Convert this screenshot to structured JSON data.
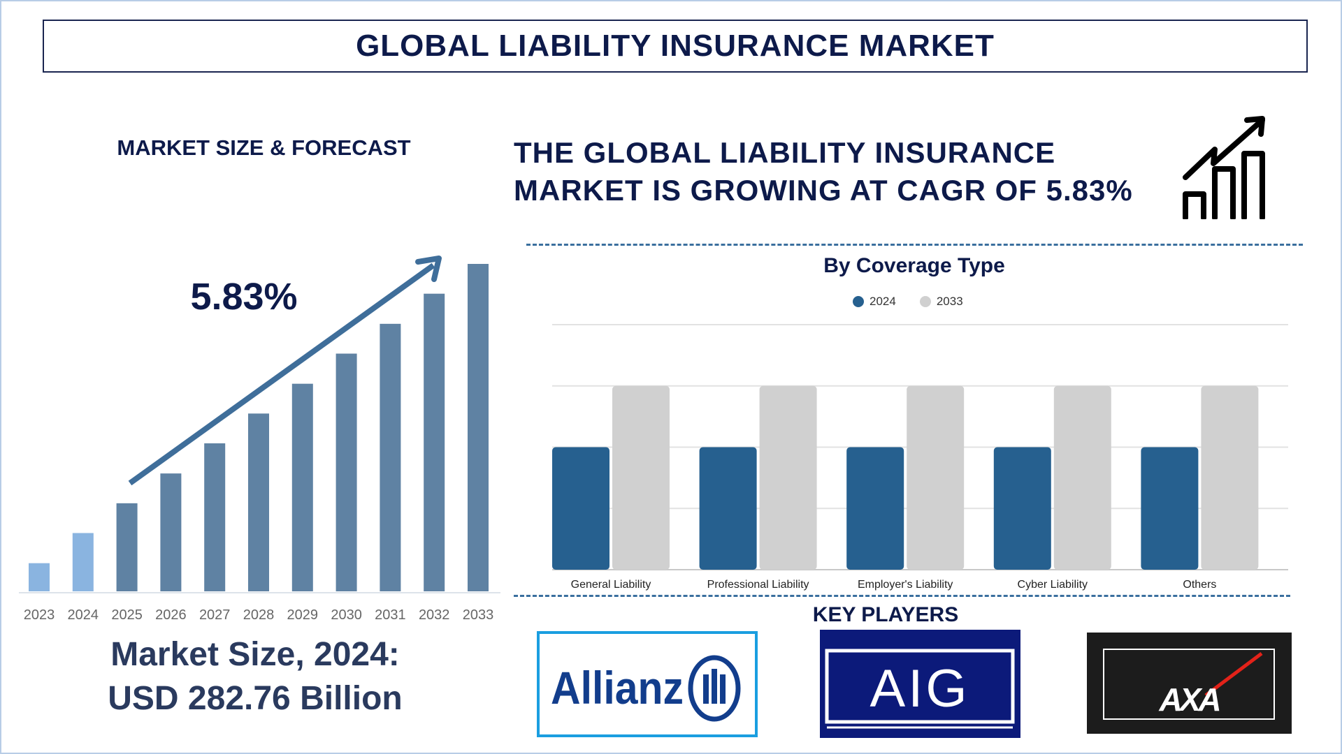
{
  "header": {
    "title": "GLOBAL LIABILITY INSURANCE MARKET"
  },
  "left": {
    "section_title": "MARKET SIZE & FORECAST",
    "cagr_label": "5.83%",
    "market_size_line1": "Market Size, 2024:",
    "market_size_line2": "USD 282.76 Billion"
  },
  "headline": {
    "line1": "THE GLOBAL LIABILITY INSURANCE",
    "line2": "MARKET IS GROWING AT CAGR OF 5.83%",
    "icon": "growth-chart-icon"
  },
  "key_players": {
    "title": "KEY PLAYERS",
    "logos": [
      "Allianz",
      "AIG",
      "AXA"
    ]
  },
  "colors": {
    "title": "#0d1a4a",
    "historic_bar": "#8ab4e0",
    "forecast_bar": "#5f82a3",
    "series_2024": "#26608f",
    "series_2033": "#d0d0d0",
    "dash": "#3a6f9e"
  },
  "chart_data": [
    {
      "type": "bar",
      "title": "",
      "categories": [
        "2023",
        "2024",
        "2025",
        "2026",
        "2027",
        "2028",
        "2029",
        "2030",
        "2031",
        "2032",
        "2033"
      ],
      "values": [
        8.6,
        17.8,
        26.9,
        36.0,
        45.2,
        54.3,
        63.4,
        72.6,
        81.7,
        90.9,
        100
      ],
      "value_note": "relative bar heights (2033 = 100); no axis values printed",
      "historic": [
        "2023",
        "2024"
      ],
      "annotation": "5.83%",
      "ylim": [
        0,
        100
      ],
      "grid": false
    },
    {
      "type": "bar",
      "title": "By Coverage Type",
      "categories": [
        "General Liability",
        "Professional Liability",
        "Employer's Liability",
        "Cyber Liability",
        "Others"
      ],
      "series": [
        {
          "name": "2024",
          "values": [
            2,
            2,
            2,
            2,
            2
          ]
        },
        {
          "name": "2033",
          "values": [
            3,
            3,
            3,
            3,
            3
          ]
        }
      ],
      "ylim": [
        0,
        4
      ],
      "grid": true,
      "legend": "top"
    }
  ]
}
